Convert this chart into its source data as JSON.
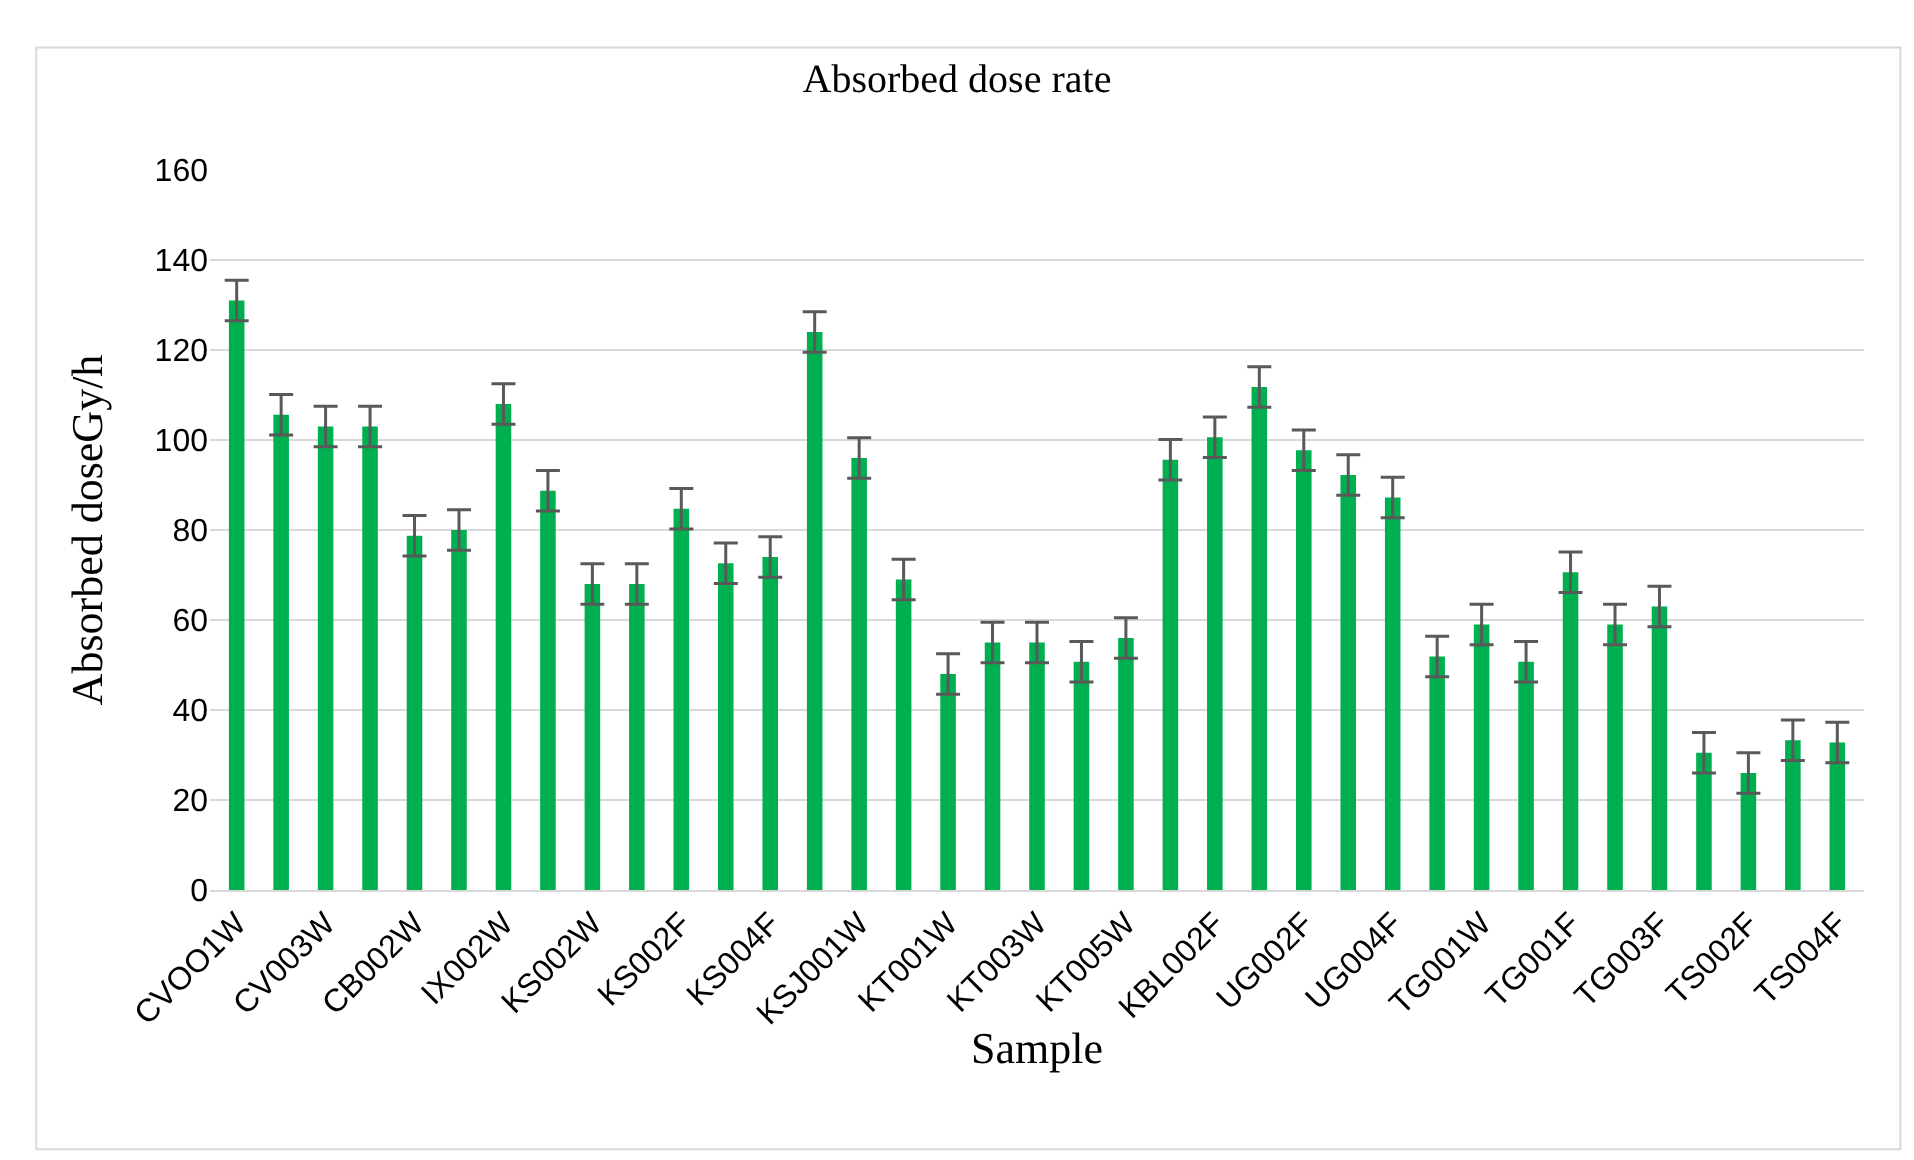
{
  "chart_data": {
    "type": "bar",
    "title": "Absorbed dose rate",
    "xlabel": "Sample",
    "ylabel": "Absorbed doseGy/h",
    "categories": [
      "CVOO1W",
      null,
      "CV003W",
      null,
      "CB002W",
      null,
      "IX002W",
      null,
      "KS002W",
      null,
      "KS002F",
      null,
      "KS004F",
      null,
      "KSJ001W",
      null,
      "KT001W",
      null,
      "KT003W",
      null,
      "KT005W",
      null,
      "KBL002F",
      null,
      "UG002F",
      null,
      "UG004F",
      null,
      "TG001W",
      null,
      "TG001F",
      null,
      "TG003F",
      null,
      "TS002F",
      null,
      "TS004F"
    ],
    "values": [
      131,
      105.6,
      103,
      103,
      78.7,
      80,
      108,
      88.7,
      68,
      68,
      84.7,
      72.6,
      74,
      124,
      96,
      69,
      48,
      55,
      55,
      50.7,
      56,
      95.6,
      100.6,
      111.8,
      97.7,
      92.2,
      87.2,
      51.9,
      59,
      50.7,
      70.6,
      59,
      63,
      30.5,
      26,
      33.3,
      32.8
    ],
    "errors": [
      4.5,
      4.5,
      4.5,
      4.5,
      4.5,
      4.5,
      4.5,
      4.5,
      4.5,
      4.5,
      4.5,
      4.5,
      4.5,
      4.5,
      4.5,
      4.5,
      4.5,
      4.5,
      4.5,
      4.5,
      4.5,
      4.5,
      4.5,
      4.5,
      4.5,
      4.5,
      4.5,
      4.5,
      4.5,
      4.5,
      4.5,
      4.5,
      4.5,
      4.5,
      4.5,
      4.5,
      4.5
    ],
    "color": "#00b050",
    "ylim": [
      0,
      160
    ],
    "yticks": [
      0,
      20,
      40,
      60,
      80,
      100,
      120,
      140,
      160
    ],
    "grid": "y"
  }
}
